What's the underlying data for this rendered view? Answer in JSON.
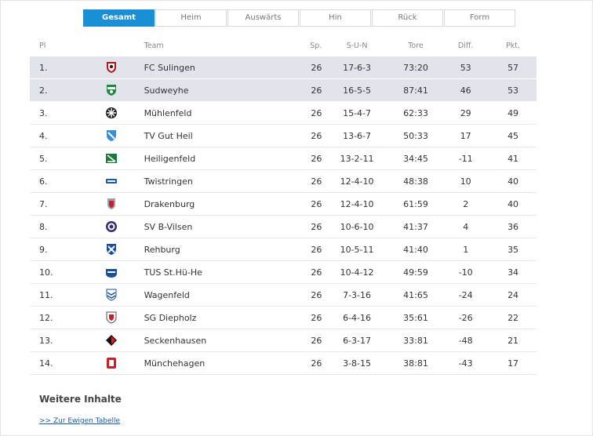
{
  "tabs": [
    "Gesamt",
    "Heim",
    "Auswärts",
    "Hin",
    "Rück",
    "Form"
  ],
  "active_tab": 0,
  "columns": {
    "pl": "Pl",
    "team": "Team",
    "sp": "Sp.",
    "sun": "S-U-N",
    "tore": "Tore",
    "diff": "Diff.",
    "pkt": "Pkt."
  },
  "rows": [
    {
      "pl": "1.",
      "team": "FC Sulingen",
      "sp": "26",
      "sun": "17-6-3",
      "tore": "73:20",
      "diff": "53",
      "pkt": "57",
      "logo": "fc-sulingen-crest-icon",
      "highlight": true
    },
    {
      "pl": "2.",
      "team": "Sudweyhe",
      "sp": "26",
      "sun": "16-5-5",
      "tore": "87:41",
      "diff": "46",
      "pkt": "53",
      "logo": "sudweyhe-crest-icon",
      "highlight": true
    },
    {
      "pl": "3.",
      "team": "Mühlenfeld",
      "sp": "26",
      "sun": "15-4-7",
      "tore": "62:33",
      "diff": "29",
      "pkt": "49",
      "logo": "muehlenfeld-crest-icon",
      "highlight": false
    },
    {
      "pl": "4.",
      "team": "TV Gut Heil",
      "sp": "26",
      "sun": "13-6-7",
      "tore": "50:33",
      "diff": "17",
      "pkt": "45",
      "logo": "tv-gut-heil-crest-icon",
      "highlight": false
    },
    {
      "pl": "5.",
      "team": "Heiligenfeld",
      "sp": "26",
      "sun": "13-2-11",
      "tore": "34:45",
      "diff": "-11",
      "pkt": "41",
      "logo": "heiligenfeld-crest-icon",
      "highlight": false
    },
    {
      "pl": "6.",
      "team": "Twistringen",
      "sp": "26",
      "sun": "12-4-10",
      "tore": "48:38",
      "diff": "10",
      "pkt": "40",
      "logo": "twistringen-crest-icon",
      "highlight": false
    },
    {
      "pl": "7.",
      "team": "Drakenburg",
      "sp": "26",
      "sun": "12-4-10",
      "tore": "61:59",
      "diff": "2",
      "pkt": "40",
      "logo": "drakenburg-crest-icon",
      "highlight": false
    },
    {
      "pl": "8.",
      "team": "SV B-Vilsen",
      "sp": "26",
      "sun": "10-6-10",
      "tore": "41:37",
      "diff": "4",
      "pkt": "36",
      "logo": "sv-b-vilsen-crest-icon",
      "highlight": false
    },
    {
      "pl": "9.",
      "team": "Rehburg",
      "sp": "26",
      "sun": "10-5-11",
      "tore": "41:40",
      "diff": "1",
      "pkt": "35",
      "logo": "rehburg-crest-icon",
      "highlight": false
    },
    {
      "pl": "10.",
      "team": "TUS St.Hü-He",
      "sp": "26",
      "sun": "10-4-12",
      "tore": "49:59",
      "diff": "-10",
      "pkt": "34",
      "logo": "tus-st-hue-he-crest-icon",
      "highlight": false
    },
    {
      "pl": "11.",
      "team": "Wagenfeld",
      "sp": "26",
      "sun": "7-3-16",
      "tore": "41:65",
      "diff": "-24",
      "pkt": "24",
      "logo": "wagenfeld-crest-icon",
      "highlight": false
    },
    {
      "pl": "12.",
      "team": "SG Diepholz",
      "sp": "26",
      "sun": "6-4-16",
      "tore": "35:61",
      "diff": "-26",
      "pkt": "22",
      "logo": "sg-diepholz-crest-icon",
      "highlight": false
    },
    {
      "pl": "13.",
      "team": "Seckenhausen",
      "sp": "26",
      "sun": "6-3-17",
      "tore": "33:81",
      "diff": "-48",
      "pkt": "21",
      "logo": "seckenhausen-crest-icon",
      "highlight": false
    },
    {
      "pl": "14.",
      "team": "Münchehagen",
      "sp": "26",
      "sun": "3-8-15",
      "tore": "38:81",
      "diff": "-43",
      "pkt": "17",
      "logo": "muenchehagen-crest-icon",
      "highlight": false
    }
  ],
  "more": {
    "title": "Weitere Inhalte",
    "link": ">> Zur Ewigen Tabelle"
  },
  "colors": {
    "accent": "#1a8fd6",
    "highlight_row": "#e1e4ea",
    "link": "#1a5ba8"
  }
}
